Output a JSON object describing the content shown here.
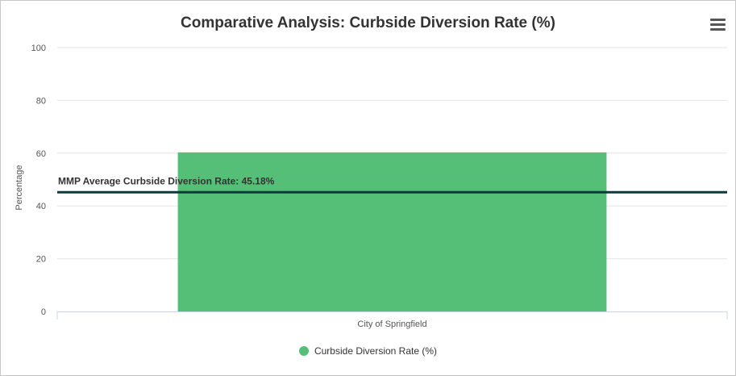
{
  "colors": {
    "bar": "#55bf77",
    "plotline": "#0d3b3b",
    "grid": "#e6e6e6"
  },
  "menu": {
    "icon": "hamburger-menu-icon"
  },
  "chart_data": {
    "type": "bar",
    "title": "Comparative Analysis: Curbside Diversion Rate (%)",
    "xlabel": "",
    "ylabel": "Percentage",
    "categories": [
      "City of Springfield"
    ],
    "series": [
      {
        "name": "Curbside Diversion Rate (%)",
        "values": [
          60.3
        ]
      }
    ],
    "ylim": [
      0,
      100
    ],
    "yticks": [
      0,
      20,
      40,
      60,
      80,
      100
    ],
    "reference_line": {
      "label": "MMP Average Curbside Diversion Rate: 45.18%",
      "value": 45.18
    },
    "grid": true,
    "legend": "bottom-center"
  }
}
